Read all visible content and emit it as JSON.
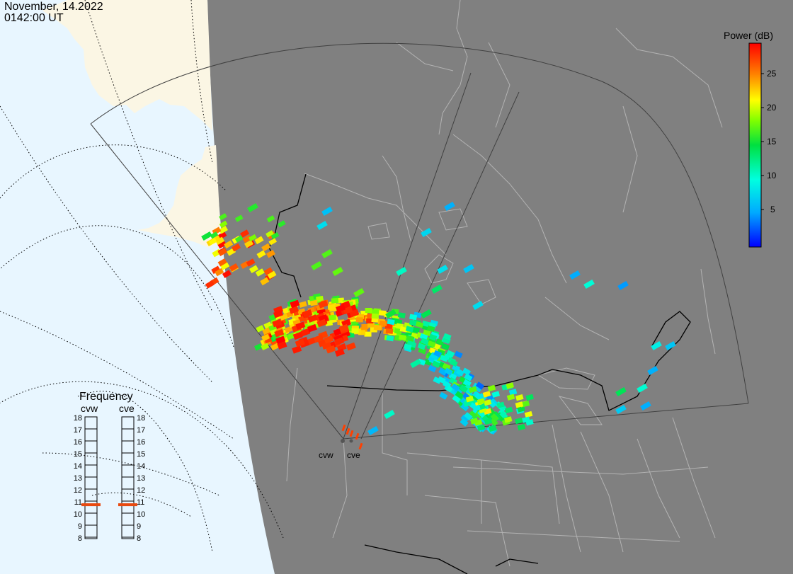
{
  "header": {
    "date": "November, 14.2022",
    "time": "0142:00 UT"
  },
  "colorbar": {
    "title": "Power (dB)",
    "ticks": [
      "25",
      "20",
      "15",
      "10",
      "5"
    ],
    "range_db": [
      0,
      29
    ]
  },
  "frequency": {
    "title": "Frequency",
    "radars": [
      {
        "label": "cvw",
        "value_mhz": 10.7
      },
      {
        "label": "cve",
        "value_mhz": 10.7
      }
    ],
    "scale": [
      "18",
      "17",
      "16",
      "15",
      "14",
      "13",
      "12",
      "11",
      "10",
      "9",
      "8"
    ]
  },
  "radar_sites": [
    "cvw",
    "cve"
  ],
  "colors": {
    "land_night": "#808080",
    "ocean_day": "#e8f6ff",
    "land_day": "#fbf6e4",
    "boundary": "#b3b3b3",
    "indicator": "#e84a10"
  }
}
